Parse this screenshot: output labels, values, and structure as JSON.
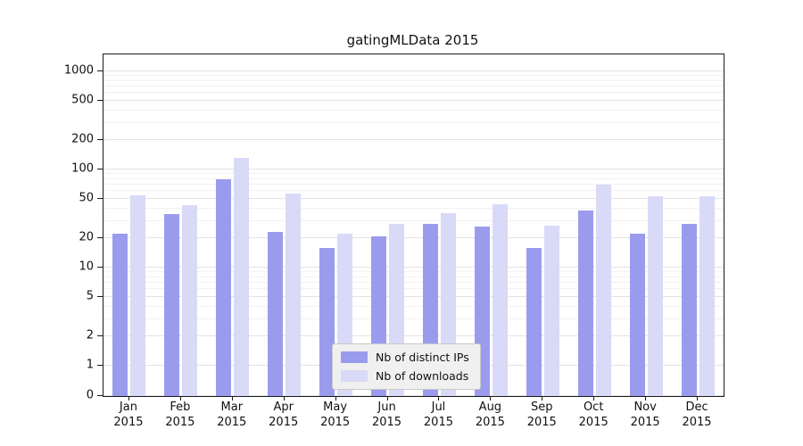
{
  "chart_data": {
    "type": "bar",
    "scale": "symlog",
    "title": "gatingMLData 2015",
    "xlabel": "",
    "ylabel": "",
    "ylim": [
      0,
      1000
    ],
    "y_major_ticks": [
      0,
      1,
      2,
      5,
      10,
      20,
      50,
      100,
      200,
      500,
      1000
    ],
    "y_minor_ticks": [
      3,
      4,
      6,
      7,
      8,
      9,
      30,
      40,
      60,
      70,
      80,
      90,
      300,
      400,
      600,
      700,
      800,
      900
    ],
    "grid": true,
    "legend_position": "lower center",
    "categories": [
      {
        "month": "Jan",
        "year": "2015"
      },
      {
        "month": "Feb",
        "year": "2015"
      },
      {
        "month": "Mar",
        "year": "2015"
      },
      {
        "month": "Apr",
        "year": "2015"
      },
      {
        "month": "May",
        "year": "2015"
      },
      {
        "month": "Jun",
        "year": "2015"
      },
      {
        "month": "Jul",
        "year": "2015"
      },
      {
        "month": "Aug",
        "year": "2015"
      },
      {
        "month": "Sep",
        "year": "2015"
      },
      {
        "month": "Oct",
        "year": "2015"
      },
      {
        "month": "Nov",
        "year": "2015"
      },
      {
        "month": "Dec",
        "year": "2015"
      }
    ],
    "series": [
      {
        "name": "Nb of distinct IPs",
        "color": "#9b9bee",
        "values": [
          22,
          35,
          80,
          23,
          16,
          21,
          28,
          26,
          16,
          38,
          22,
          28
        ]
      },
      {
        "name": "Nb of downloads",
        "color": "#d9d9f8",
        "values": [
          55,
          43,
          130,
          57,
          22,
          28,
          36,
          44,
          27,
          70,
          53,
          53
        ]
      }
    ]
  }
}
